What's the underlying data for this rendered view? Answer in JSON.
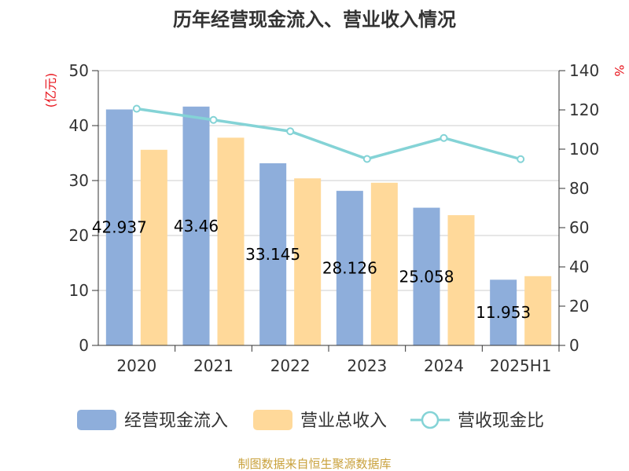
{
  "colors": {
    "cash_inflow": "#8eaedb",
    "revenue": "#ffd99a",
    "ratio": "#84d3d6",
    "unit_text": "#e8141c",
    "source_text": "#c9a13c"
  },
  "chart_data": {
    "type": "bar",
    "title": "历年经营现金流入、营业收入情况",
    "ylabel_left": "(亿元)",
    "ylabel_right": "%",
    "categories": [
      "2020",
      "2021",
      "2022",
      "2023",
      "2024",
      "2025H1"
    ],
    "ylim_left": [
      0,
      50
    ],
    "ylim_right": [
      0,
      140
    ],
    "yticks_left": [
      "0",
      "10",
      "20",
      "30",
      "40",
      "50"
    ],
    "yticks_right": [
      "0",
      "20",
      "40",
      "60",
      "80",
      "100",
      "120",
      "140"
    ],
    "grid": true,
    "legend_position": "bottom",
    "series": [
      {
        "name": "经营现金流入",
        "type": "bar",
        "axis": "left",
        "values": [
          42.937,
          43.46,
          33.145,
          28.126,
          25.058,
          11.953
        ],
        "labels": [
          "42.937",
          "43.46",
          "33.145",
          "28.126",
          "25.058",
          "11.953"
        ]
      },
      {
        "name": "营业总收入",
        "type": "bar",
        "axis": "left",
        "values": [
          35.6,
          37.8,
          30.4,
          29.6,
          23.7,
          12.6
        ]
      },
      {
        "name": "营收现金比",
        "type": "line",
        "axis": "right",
        "values": [
          120.6,
          114.9,
          109.1,
          95.0,
          105.7,
          94.9
        ]
      }
    ],
    "source": "制图数据来自恒生聚源数据库"
  }
}
